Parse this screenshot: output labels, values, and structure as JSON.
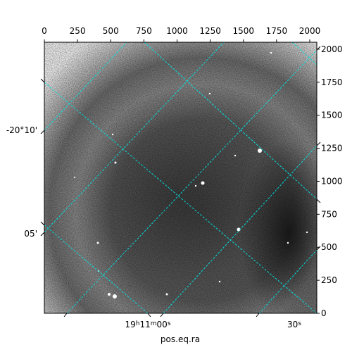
{
  "chart_data": {
    "type": "image",
    "xlabel": "pos.eq.ra",
    "xlim": [
      0,
      2053
    ],
    "xticks": [
      0,
      250,
      500,
      750,
      1000,
      1250,
      1500,
      1750,
      2000
    ],
    "ylim": [
      0,
      2053
    ],
    "yticks": [
      0,
      250,
      500,
      750,
      1000,
      1250,
      1500,
      1750,
      2000
    ],
    "ra_tick_labels": [
      {
        "parts": [
          "19",
          "h",
          "11",
          "m",
          "00",
          "s"
        ]
      },
      {
        "parts": [
          "30",
          "s"
        ]
      }
    ],
    "dec_tick_labels": [
      "-20°10'",
      "05'"
    ],
    "grid_color": "#00e5e5"
  }
}
